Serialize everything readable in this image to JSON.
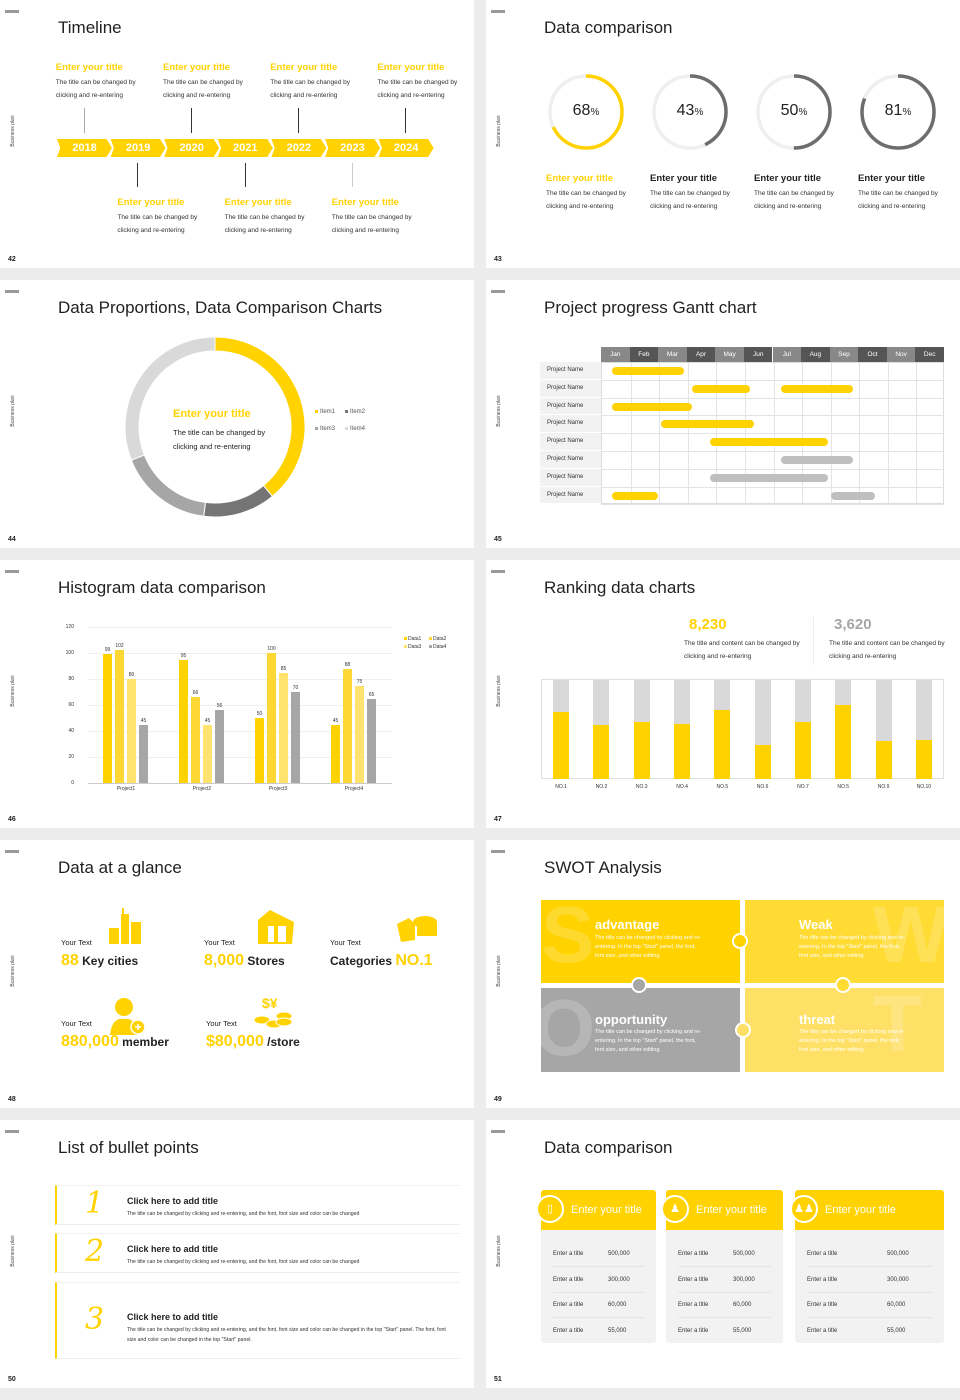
{
  "common": {
    "side_label": "Business plan"
  },
  "colors": {
    "yellow": "#ffd200",
    "yellow2": "#fdd835",
    "yellow3": "#ffe36e",
    "gray": "#a6a6a6",
    "dark_gray": "#757575",
    "light_gray": "#d9d9d9"
  },
  "slides": [
    {
      "page": "42",
      "title": "Timeline"
    },
    {
      "page": "43",
      "title": "Data comparison"
    },
    {
      "page": "44",
      "title": "Data Proportions, Data Comparison Charts"
    },
    {
      "page": "45",
      "title": "Project progress Gantt chart"
    },
    {
      "page": "46",
      "title": "Histogram data comparison"
    },
    {
      "page": "47",
      "title": "Ranking data charts"
    },
    {
      "page": "48",
      "title": "Data at a glance"
    },
    {
      "page": "49",
      "title": "SWOT Analysis"
    },
    {
      "page": "50",
      "title": "List of bullet points"
    },
    {
      "page": "51",
      "title": "Data comparison"
    }
  ],
  "timeline": {
    "years": [
      "2018",
      "2019",
      "2020",
      "2021",
      "2022",
      "2023",
      "2024"
    ],
    "top_items": [
      {
        "title": "Enter your title",
        "desc": "The title can be changed by clicking and re-entering"
      },
      {
        "title": "Enter your title",
        "desc": "The title can be changed by clicking and re-entering"
      },
      {
        "title": "Enter your title",
        "desc": "The title can be changed by clicking and re-entering"
      },
      {
        "title": "Enter your title",
        "desc": "The title can be changed by clicking and re-entering"
      }
    ],
    "bottom_items": [
      {
        "title": "Enter your title",
        "desc": "The title can be changed by clicking and re-entering"
      },
      {
        "title": "Enter your title",
        "desc": "The title can be changed by clicking and re-entering"
      },
      {
        "title": "Enter your title",
        "desc": "The title can be changed by clicking and re-entering"
      }
    ]
  },
  "rings": [
    {
      "value": 68,
      "unit": "%",
      "title": "Enter your title",
      "desc": "The title can be changed by clicking and re-entering",
      "color": "#ffd200",
      "title_color": "#ffd200"
    },
    {
      "value": 43,
      "unit": "%",
      "title": "Enter your title",
      "desc": "The title can be changed by clicking and re-entering",
      "color": "#6d6d6d",
      "title_color": "#222222"
    },
    {
      "value": 50,
      "unit": "%",
      "title": "Enter your title",
      "desc": "The title can be changed by clicking and re-entering",
      "color": "#6d6d6d",
      "title_color": "#222222"
    },
    {
      "value": 81,
      "unit": "%",
      "title": "Enter your title",
      "desc": "The title can be changed by clicking and re-entering",
      "color": "#6d6d6d",
      "title_color": "#222222"
    }
  ],
  "proportions": {
    "center_title": "Enter your title",
    "center_desc": "The title can be changed by clicking and re-entering",
    "chart_data": {
      "type": "pie",
      "donut": true,
      "categories": [
        "Item1",
        "Item2",
        "Item3",
        "Item4"
      ],
      "values": [
        39,
        13,
        17,
        31
      ],
      "colors": [
        "#ffd200",
        "#757575",
        "#a6a6a6",
        "#d9d9d9"
      ],
      "legend": "right"
    }
  },
  "gantt": {
    "months": [
      "Jan",
      "Feb",
      "Mar",
      "Apr",
      "May",
      "Jun",
      "Jul",
      "Aug",
      "Sep",
      "Oct",
      "Nov",
      "Dec"
    ],
    "rows": [
      {
        "label": "Project Name",
        "bars": [
          {
            "start": 0.4,
            "end": 2.9,
            "color": "#ffd200"
          }
        ]
      },
      {
        "label": "Project Name",
        "bars": [
          {
            "start": 3.2,
            "end": 5.2,
            "color": "#ffd200"
          },
          {
            "start": 6.3,
            "end": 8.8,
            "color": "#ffd200"
          }
        ]
      },
      {
        "label": "Project Name",
        "bars": [
          {
            "start": 0.4,
            "end": 3.2,
            "color": "#ffd200"
          }
        ]
      },
      {
        "label": "Project Name",
        "bars": [
          {
            "start": 2.1,
            "end": 5.35,
            "color": "#ffd200"
          }
        ]
      },
      {
        "label": "Project Name",
        "bars": [
          {
            "start": 3.8,
            "end": 7.95,
            "color": "#ffd200"
          }
        ]
      },
      {
        "label": "Project Name",
        "bars": [
          {
            "start": 6.3,
            "end": 8.8,
            "color": "#bfbfbf"
          }
        ]
      },
      {
        "label": "Project Name",
        "bars": [
          {
            "start": 3.8,
            "end": 7.95,
            "color": "#bfbfbf"
          }
        ]
      },
      {
        "label": "Project Name",
        "bars": [
          {
            "start": 0.4,
            "end": 2.0,
            "color": "#ffd200"
          },
          {
            "start": 8.05,
            "end": 9.6,
            "color": "#bfbfbf"
          }
        ]
      }
    ]
  },
  "chart_data": {
    "type": "bar",
    "categories": [
      "Project1",
      "Project2",
      "Project3",
      "Project4"
    ],
    "series": [
      {
        "name": "Data1",
        "values": [
          99,
          95,
          50,
          45
        ],
        "color": "#ffd200"
      },
      {
        "name": "Data2",
        "values": [
          102,
          66,
          100,
          88
        ],
        "color": "#fdd835"
      },
      {
        "name": "Data3",
        "values": [
          80,
          45,
          85,
          75
        ],
        "color": "#ffe36e"
      },
      {
        "name": "Data4",
        "values": [
          45,
          56,
          70,
          65
        ],
        "color": "#a6a6a6"
      }
    ],
    "yticks": [
      "0",
      "20",
      "40",
      "60",
      "80",
      "100",
      "120"
    ],
    "ylim": [
      0,
      120
    ],
    "grid": true,
    "legend": "top-right"
  },
  "ranking": {
    "stats": [
      {
        "value": "8,230",
        "desc": "The title and content can be changed by clicking and re-entering",
        "color": "#ffd200"
      },
      {
        "value": "3,620",
        "desc": "The title and content can be changed by clicking and re-entering",
        "color": "#a6a6a6"
      }
    ],
    "chart_data": {
      "type": "bar",
      "stacked_percent": true,
      "categories": [
        "NO.1",
        "NO.2",
        "NO.3",
        "NO.4",
        "NO.5",
        "NO.6",
        "NO.7",
        "NO.5",
        "NO.9",
        "NO.10"
      ],
      "values": [
        0.68,
        0.55,
        0.58,
        0.56,
        0.7,
        0.34,
        0.58,
        0.75,
        0.38,
        0.39
      ]
    }
  },
  "glance": [
    {
      "label": "Your Text",
      "number": "88",
      "suffix": "Key cities",
      "icon": "city-buildings-icon"
    },
    {
      "label": "Your Text",
      "number": "8,000",
      "suffix": "Stores",
      "icon": "store-icon"
    },
    {
      "label": "Your Text",
      "prefix": "Categories",
      "number": "NO.1",
      "icon": "cheese-box-icon"
    },
    {
      "label": "Your Text",
      "number": "880,000",
      "suffix": "member",
      "icon": "person-add-icon"
    },
    {
      "label": "Your Text",
      "number": "$80,000",
      "suffix": "/store",
      "icon": "coins-icon"
    }
  ],
  "swot": [
    {
      "letter": "S",
      "title": "advantage",
      "desc": "The title can be changed by clicking and re-entering. In the top \"Start\" panel, the font, font size, and other editing",
      "color": "#ffd200"
    },
    {
      "letter": "W",
      "title": "Weak",
      "desc": "The title can be changed by clicking and re-entering. In the top \"Start\" panel, the font, font size, and other editing",
      "color": "#ffdb33"
    },
    {
      "letter": "O",
      "title": "opportunity",
      "desc": "The title can be changed by clicking and re-entering. In the top \"Start\" panel, the font, font size, and other editing",
      "color": "#a6a6a6"
    },
    {
      "letter": "T",
      "title": "threat",
      "desc": "The title can be changed by clicking and re-entering. In the top \"Start\" panel, the font, font size, and other editing",
      "color": "#ffe066"
    }
  ],
  "bullets": [
    {
      "num": "1",
      "title": "Click here to add title",
      "desc": "The title can be changed by clicking and re-entering, and the font, font size and color can be changed"
    },
    {
      "num": "2",
      "title": "Click here to add title",
      "desc": "The title can be changed by clicking and re-entering, and the font, font size and color can be changed"
    },
    {
      "num": "3",
      "title": "Click here to add title",
      "desc": "The title can be changed by clicking and re-entering, and the font, font size and color can be changed in the top \"Start\" panel. The font, font size and color can be changed in the top \"Start\" panel."
    }
  ],
  "cards": [
    {
      "title": "Enter your title",
      "icon": "phone-user-icon",
      "rows": [
        {
          "label": "Enter a title",
          "value": "500,000"
        },
        {
          "label": "Enter a title",
          "value": "300,000"
        },
        {
          "label": "Enter a title",
          "value": "60,000"
        },
        {
          "label": "Enter a title",
          "value": "55,000"
        }
      ]
    },
    {
      "title": "Enter your title",
      "icon": "user-info-icon",
      "rows": [
        {
          "label": "Enter a title",
          "value": "500,000"
        },
        {
          "label": "Enter a title",
          "value": "300,000"
        },
        {
          "label": "Enter a title",
          "value": "60,000"
        },
        {
          "label": "Enter a title",
          "value": "55,000"
        }
      ]
    },
    {
      "title": "Enter your title",
      "icon": "users-group-icon",
      "rows": [
        {
          "label": "Enter a title",
          "value": "500,000"
        },
        {
          "label": "Enter a title",
          "value": "300,000"
        },
        {
          "label": "Enter a title",
          "value": "60,000"
        },
        {
          "label": "Enter a title",
          "value": "55,000"
        }
      ]
    }
  ]
}
